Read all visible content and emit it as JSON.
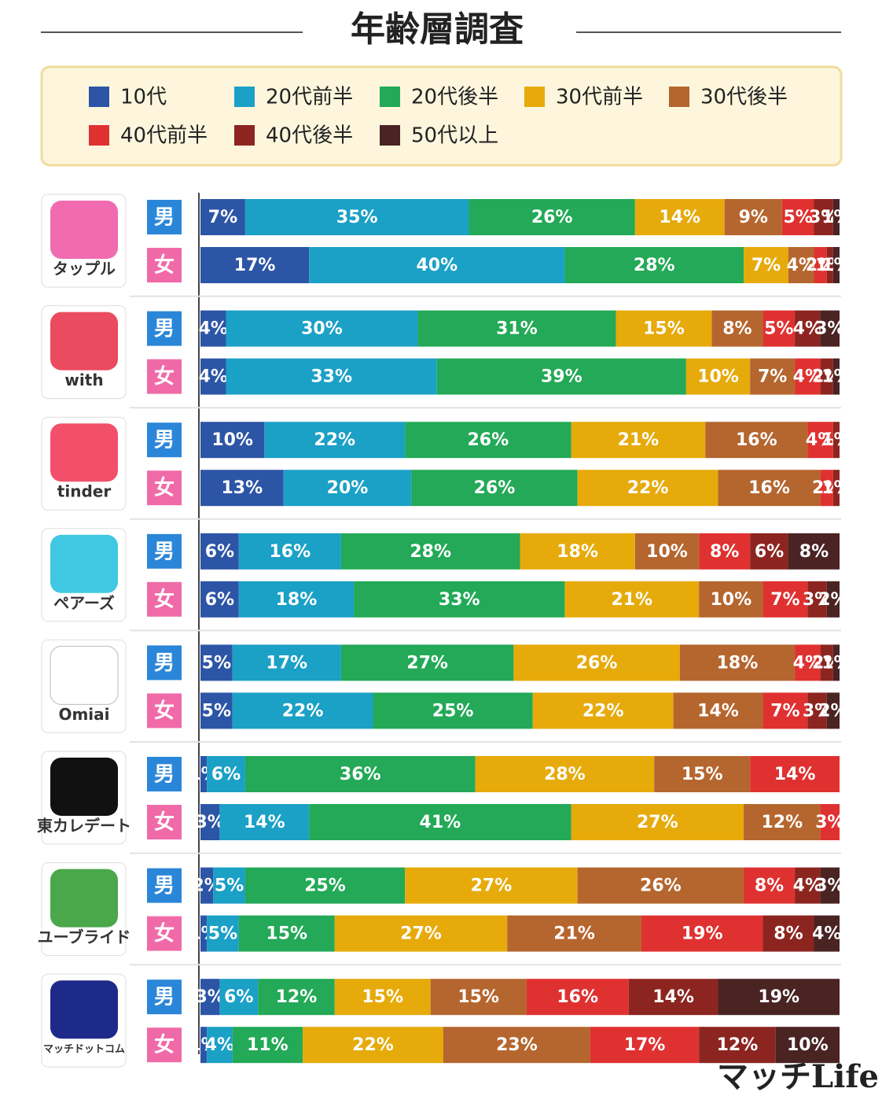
{
  "chart_data": {
    "type": "bar",
    "orientation": "horizontal",
    "stacked": true,
    "title": "年齢層調査",
    "groups": [
      "タップル",
      "with",
      "tinder",
      "ペアーズ",
      "Omiai",
      "東カレデート",
      "ユーブライド",
      "マッチドットコム"
    ],
    "categories": [
      "男",
      "女",
      "男",
      "女",
      "男",
      "女",
      "男",
      "女",
      "男",
      "女",
      "男",
      "女",
      "男",
      "女",
      "男",
      "女"
    ],
    "series": [
      {
        "name": "10代",
        "color": "#2d55a6",
        "values": [
          7,
          17,
          4,
          4,
          10,
          13,
          6,
          6,
          5,
          5,
          1,
          3,
          2,
          1,
          3,
          1
        ],
        "value_labels": [
          "7%",
          "17%",
          "4%",
          "4%",
          "10%",
          "13%",
          "6%",
          "6%",
          "5%",
          "5%",
          "1%",
          "3%",
          "2%",
          "1%",
          "3%",
          "1%"
        ]
      },
      {
        "name": "20代前半",
        "color": "#1ba0c6",
        "values": [
          35,
          40,
          30,
          33,
          22,
          20,
          16,
          18,
          17,
          22,
          6,
          14,
          5,
          5,
          6,
          4
        ],
        "value_labels": [
          "35%",
          "40%",
          "30%",
          "33%",
          "22%",
          "20%",
          "16%",
          "18%",
          "17%",
          "22%",
          "6%",
          "14%",
          "5%",
          "5%",
          "6%",
          "4%"
        ]
      },
      {
        "name": "20代後半",
        "color": "#23a957",
        "values": [
          26,
          28,
          31,
          39,
          26,
          26,
          28,
          33,
          27,
          25,
          36,
          41,
          25,
          15,
          12,
          11
        ],
        "value_labels": [
          "26%",
          "28%",
          "31%",
          "39%",
          "26%",
          "26%",
          "28%",
          "33%",
          "27%",
          "25%",
          "36%",
          "41%",
          "25%",
          "15%",
          "12%",
          "11%"
        ]
      },
      {
        "name": "30代前半",
        "color": "#e6aa0b",
        "values": [
          14,
          7,
          15,
          10,
          21,
          22,
          18,
          21,
          26,
          22,
          28,
          27,
          27,
          27,
          15,
          22
        ],
        "value_labels": [
          "14%",
          "7%",
          "15%",
          "10%",
          "21%",
          "22%",
          "18%",
          "21%",
          "26%",
          "22%",
          "28%",
          "27%",
          "27%",
          "27%",
          "15%",
          "22%"
        ]
      },
      {
        "name": "30代後半",
        "color": "#b5662e",
        "values": [
          9,
          4,
          8,
          7,
          16,
          16,
          10,
          10,
          18,
          14,
          15,
          12,
          26,
          21,
          15,
          23
        ],
        "value_labels": [
          "9%",
          "4%",
          "8%",
          "7%",
          "16%",
          "16%",
          "10%",
          "10%",
          "18%",
          "14%",
          "15%",
          "12%",
          "26%",
          "21%",
          "15%",
          "23%"
        ]
      },
      {
        "name": "40代前半",
        "color": "#e03131",
        "values": [
          5,
          2,
          5,
          4,
          4,
          2,
          8,
          7,
          4,
          7,
          14,
          3,
          8,
          19,
          16,
          17
        ],
        "value_labels": [
          "5%",
          "2%",
          "5%",
          "4%",
          "4%",
          "2%",
          "8%",
          "7%",
          "4%",
          "7%",
          "14%",
          "3%",
          "8%",
          "19%",
          "16%",
          "17%"
        ]
      },
      {
        "name": "40代後半",
        "color": "#8c2520",
        "values": [
          3,
          1,
          4,
          2,
          1,
          1,
          6,
          3,
          2,
          3,
          null,
          null,
          4,
          8,
          14,
          12
        ],
        "value_labels": [
          "3%",
          "1%",
          "4%",
          "2%",
          "1%",
          "1%",
          "6%",
          "3%",
          "2%",
          "3%",
          null,
          null,
          "4%",
          "8%",
          "14%",
          "12%"
        ]
      },
      {
        "name": "50代以上",
        "color": "#4a2323",
        "values": [
          1,
          1,
          3,
          1,
          null,
          null,
          8,
          2,
          1,
          2,
          null,
          null,
          3,
          4,
          19,
          10
        ],
        "value_labels": [
          "1%",
          "1%",
          "3%",
          "1%",
          null,
          null,
          "8%",
          "2%",
          "1%",
          "2%",
          null,
          null,
          "3%",
          "4%",
          "19%",
          "10%"
        ]
      }
    ]
  },
  "brand": "マッチLife"
}
